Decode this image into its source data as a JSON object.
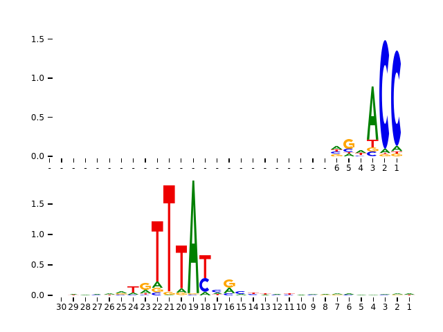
{
  "figure": {
    "background": "#ffffff",
    "letter_colors": {
      "A": "#008000",
      "C": "#0000ee",
      "G": "#ffa500",
      "T": "#ee0000"
    }
  },
  "chart_data": [
    {
      "type": "sequence-logo",
      "panel": "top",
      "title": "",
      "xlabel": "",
      "ylabel": "",
      "yticks": [
        "0.0",
        "0.5",
        "1.0",
        "1.5"
      ],
      "ylim": [
        0,
        1.6
      ],
      "note": "positions run right-to-left, 1 at far right; stacks listed bottom-to-top as [letter, height]",
      "positions": [
        {
          "pos": 30,
          "label": "-",
          "stack": []
        },
        {
          "pos": 29,
          "label": "-",
          "stack": []
        },
        {
          "pos": 28,
          "label": "-",
          "stack": []
        },
        {
          "pos": 27,
          "label": "-",
          "stack": []
        },
        {
          "pos": 26,
          "label": "-",
          "stack": []
        },
        {
          "pos": 25,
          "label": "-",
          "stack": []
        },
        {
          "pos": 24,
          "label": "-",
          "stack": []
        },
        {
          "pos": 23,
          "label": "-",
          "stack": []
        },
        {
          "pos": 22,
          "label": "-",
          "stack": []
        },
        {
          "pos": 21,
          "label": "-",
          "stack": []
        },
        {
          "pos": 20,
          "label": "-",
          "stack": []
        },
        {
          "pos": 19,
          "label": "-",
          "stack": []
        },
        {
          "pos": 18,
          "label": "-",
          "stack": []
        },
        {
          "pos": 17,
          "label": "-",
          "stack": []
        },
        {
          "pos": 16,
          "label": "-",
          "stack": []
        },
        {
          "pos": 15,
          "label": "-",
          "stack": []
        },
        {
          "pos": 14,
          "label": "-",
          "stack": []
        },
        {
          "pos": 13,
          "label": "-",
          "stack": []
        },
        {
          "pos": 12,
          "label": "-",
          "stack": []
        },
        {
          "pos": 11,
          "label": "-",
          "stack": []
        },
        {
          "pos": 10,
          "label": "-",
          "stack": []
        },
        {
          "pos": 9,
          "label": "-",
          "stack": []
        },
        {
          "pos": 8,
          "label": "-",
          "stack": []
        },
        {
          "pos": 7,
          "label": "-",
          "stack": []
        },
        {
          "pos": 6,
          "label": "6",
          "stack": [
            [
              "G",
              0.03
            ],
            [
              "C",
              0.028
            ],
            [
              "T",
              0.03
            ],
            [
              "A",
              0.045
            ]
          ]
        },
        {
          "pos": 5,
          "label": "5",
          "stack": [
            [
              "A",
              0.038
            ],
            [
              "T",
              0.015
            ],
            [
              "C",
              0.042
            ],
            [
              "G",
              0.13
            ]
          ]
        },
        {
          "pos": 4,
          "label": "4",
          "stack": [
            [
              "C",
              0.012
            ],
            [
              "T",
              0.028
            ],
            [
              "A",
              0.04
            ]
          ]
        },
        {
          "pos": 3,
          "label": "3",
          "stack": [
            [
              "C",
              0.06
            ],
            [
              "G",
              0.055
            ],
            [
              "T",
              0.1
            ],
            [
              "A",
              0.68
            ]
          ]
        },
        {
          "pos": 2,
          "label": "2",
          "stack": [
            [
              "G",
              0.028
            ],
            [
              "T",
              0.012
            ],
            [
              "A",
              0.06
            ],
            [
              "C",
              1.39
            ]
          ]
        },
        {
          "pos": 1,
          "label": "1",
          "stack": [
            [
              "G",
              0.035
            ],
            [
              "T",
              0.03
            ],
            [
              "A",
              0.065
            ],
            [
              "C",
              1.22
            ]
          ]
        }
      ]
    },
    {
      "type": "sequence-logo",
      "panel": "bottom",
      "title": "",
      "xlabel": "",
      "ylabel": "",
      "yticks": [
        "0.0",
        "0.5",
        "1.0",
        "1.5"
      ],
      "ylim": [
        0,
        1.95
      ],
      "note": "positions run right-to-left, 1 at far right; stacks listed bottom-to-top as [letter, height]",
      "positions": [
        {
          "pos": 30,
          "label": "30",
          "stack": []
        },
        {
          "pos": 29,
          "label": "29",
          "stack": [
            [
              "T",
              0.008
            ],
            [
              "A",
              0.018
            ]
          ]
        },
        {
          "pos": 28,
          "label": "28",
          "stack": [
            [
              "A",
              0.012
            ]
          ]
        },
        {
          "pos": 27,
          "label": "27",
          "stack": [
            [
              "C",
              0.008
            ],
            [
              "A",
              0.018
            ]
          ]
        },
        {
          "pos": 26,
          "label": "26",
          "stack": [
            [
              "T",
              0.01
            ],
            [
              "A",
              0.022
            ]
          ]
        },
        {
          "pos": 25,
          "label": "25",
          "stack": [
            [
              "C",
              0.012
            ],
            [
              "G",
              0.022
            ],
            [
              "A",
              0.034
            ]
          ]
        },
        {
          "pos": 24,
          "label": "24",
          "stack": [
            [
              "C",
              0.012
            ],
            [
              "A",
              0.035
            ],
            [
              "T",
              0.105
            ]
          ]
        },
        {
          "pos": 23,
          "label": "23",
          "stack": [
            [
              "C",
              0.01
            ],
            [
              "T",
              0.02
            ],
            [
              "A",
              0.058
            ],
            [
              "G",
              0.115
            ]
          ]
        },
        {
          "pos": 22,
          "label": "22",
          "stack": [
            [
              "C",
              0.045
            ],
            [
              "G",
              0.075
            ],
            [
              "A",
              0.11
            ],
            [
              "T",
              0.99
            ]
          ]
        },
        {
          "pos": 21,
          "label": "21",
          "stack": [
            [
              "A",
              0.012
            ],
            [
              "G",
              0.05
            ],
            [
              "T",
              1.74
            ]
          ]
        },
        {
          "pos": 20,
          "label": "20",
          "stack": [
            [
              "G",
              0.04
            ],
            [
              "A",
              0.075
            ],
            [
              "T",
              0.7
            ]
          ]
        },
        {
          "pos": 19,
          "label": "19",
          "stack": [
            [
              "C",
              0.012
            ],
            [
              "G",
              0.02
            ],
            [
              "A",
              1.85
            ]
          ]
        },
        {
          "pos": 18,
          "label": "18",
          "stack": [
            [
              "A",
              0.058
            ],
            [
              "C",
              0.225
            ],
            [
              "T",
              0.38
            ]
          ]
        },
        {
          "pos": 17,
          "label": "17",
          "stack": [
            [
              "T",
              0.018
            ],
            [
              "A",
              0.03
            ],
            [
              "C",
              0.04
            ]
          ]
        },
        {
          "pos": 16,
          "label": "16",
          "stack": [
            [
              "C",
              0.035
            ],
            [
              "A",
              0.09
            ],
            [
              "G",
              0.135
            ]
          ]
        },
        {
          "pos": 15,
          "label": "15",
          "stack": [
            [
              "A",
              0.022
            ],
            [
              "C",
              0.045
            ]
          ]
        },
        {
          "pos": 14,
          "label": "14",
          "stack": [
            [
              "C",
              0.018
            ],
            [
              "T",
              0.028
            ]
          ]
        },
        {
          "pos": 13,
          "label": "13",
          "stack": [
            [
              "A",
              0.015
            ],
            [
              "T",
              0.02
            ]
          ]
        },
        {
          "pos": 12,
          "label": "12",
          "stack": [
            [
              "C",
              0.01
            ],
            [
              "A",
              0.015
            ]
          ]
        },
        {
          "pos": 11,
          "label": "11",
          "stack": [
            [
              "C",
              0.012
            ],
            [
              "T",
              0.025
            ]
          ]
        },
        {
          "pos": 10,
          "label": "10",
          "stack": [
            [
              "A",
              0.015
            ]
          ]
        },
        {
          "pos": 9,
          "label": "9",
          "stack": [
            [
              "C",
              0.01
            ],
            [
              "A",
              0.012
            ]
          ]
        },
        {
          "pos": 8,
          "label": "8",
          "stack": [
            [
              "G",
              0.01
            ],
            [
              "A",
              0.015
            ]
          ]
        },
        {
          "pos": 7,
          "label": "7",
          "stack": [
            [
              "G",
              0.012
            ],
            [
              "A",
              0.02
            ]
          ]
        },
        {
          "pos": 6,
          "label": "6",
          "stack": [
            [
              "C",
              0.012
            ],
            [
              "A",
              0.025
            ]
          ]
        },
        {
          "pos": 5,
          "label": "5",
          "stack": [
            [
              "A",
              0.012
            ]
          ]
        },
        {
          "pos": 4,
          "label": "4",
          "stack": [
            [
              "A",
              0.01
            ]
          ]
        },
        {
          "pos": 3,
          "label": "3",
          "stack": [
            [
              "C",
              0.008
            ],
            [
              "A",
              0.012
            ]
          ]
        },
        {
          "pos": 2,
          "label": "2",
          "stack": [
            [
              "G",
              0.01
            ],
            [
              "A",
              0.02
            ]
          ]
        },
        {
          "pos": 1,
          "label": "1",
          "stack": [
            [
              "T",
              0.012
            ],
            [
              "A",
              0.025
            ]
          ]
        }
      ]
    }
  ]
}
